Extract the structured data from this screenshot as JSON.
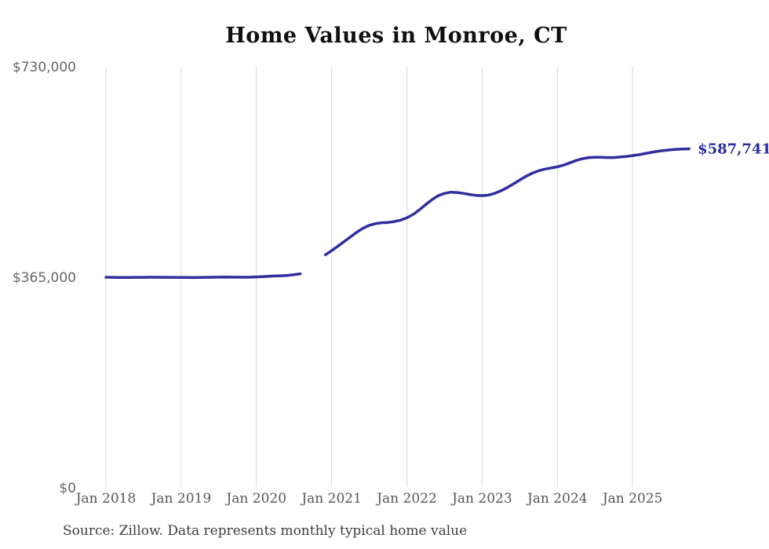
{
  "chart_data": {
    "type": "line",
    "title": "Home Values in Monroe, CT",
    "source_note": "Source: Zillow. Data represents monthly typical home value",
    "end_label": "$587,741",
    "final_value": 587741,
    "start_month": "2018-01",
    "end_month": "2025-10",
    "gap_months": [
      "2020-09",
      "2020-10",
      "2020-11"
    ],
    "ylim": [
      0,
      730000
    ],
    "grid": "vertical-only",
    "legend": "none",
    "y_ticks": [
      {
        "label": "$730,000",
        "value": 730000
      },
      {
        "label": "$365,000",
        "value": 365000
      },
      {
        "label": "$0",
        "value": 0
      }
    ],
    "x_ticks": [
      {
        "label": "Jan 2018",
        "month_index": 0
      },
      {
        "label": "Jan 2019",
        "month_index": 12
      },
      {
        "label": "Jan 2020",
        "month_index": 24
      },
      {
        "label": "Jan 2021",
        "month_index": 36
      },
      {
        "label": "Jan 2022",
        "month_index": 48
      },
      {
        "label": "Jan 2023",
        "month_index": 60
      },
      {
        "label": "Jan 2024",
        "month_index": 72
      },
      {
        "label": "Jan 2025",
        "month_index": 84
      }
    ],
    "series": [
      {
        "name": "Monthly typical home value",
        "values": [
          365000,
          364800,
          364700,
          364600,
          364700,
          364800,
          364900,
          365000,
          365000,
          364900,
          364800,
          364800,
          364700,
          364600,
          364500,
          364600,
          364800,
          365000,
          365200,
          365300,
          365200,
          365100,
          365000,
          365200,
          365600,
          366100,
          366700,
          367200,
          367600,
          368300,
          369500,
          370800,
          null,
          null,
          null,
          404000,
          411000,
          419000,
          427000,
          435000,
          443000,
          450000,
          455000,
          458000,
          459500,
          460000,
          461500,
          464000,
          468000,
          474000,
          482000,
          491000,
          499500,
          506500,
          510500,
          512500,
          512000,
          510500,
          508500,
          507000,
          506500,
          507500,
          510500,
          515000,
          520500,
          527000,
          533500,
          540000,
          545500,
          549500,
          552500,
          554500,
          556500,
          559500,
          563500,
          567500,
          570500,
          572500,
          573000,
          573000,
          572500,
          572500,
          573500,
          574500,
          576000,
          577500,
          579500,
          581500,
          583500,
          584800,
          586000,
          586900,
          587400,
          587741
        ]
      }
    ],
    "colors": {
      "line": "#302e9e",
      "end_label": "#2b2aa0",
      "gridline": "#d8d8d8",
      "y_axis_label": "#666666",
      "x_axis_label": "#555555",
      "title": "#0f0f0f",
      "source": "#3d3d3d"
    }
  }
}
